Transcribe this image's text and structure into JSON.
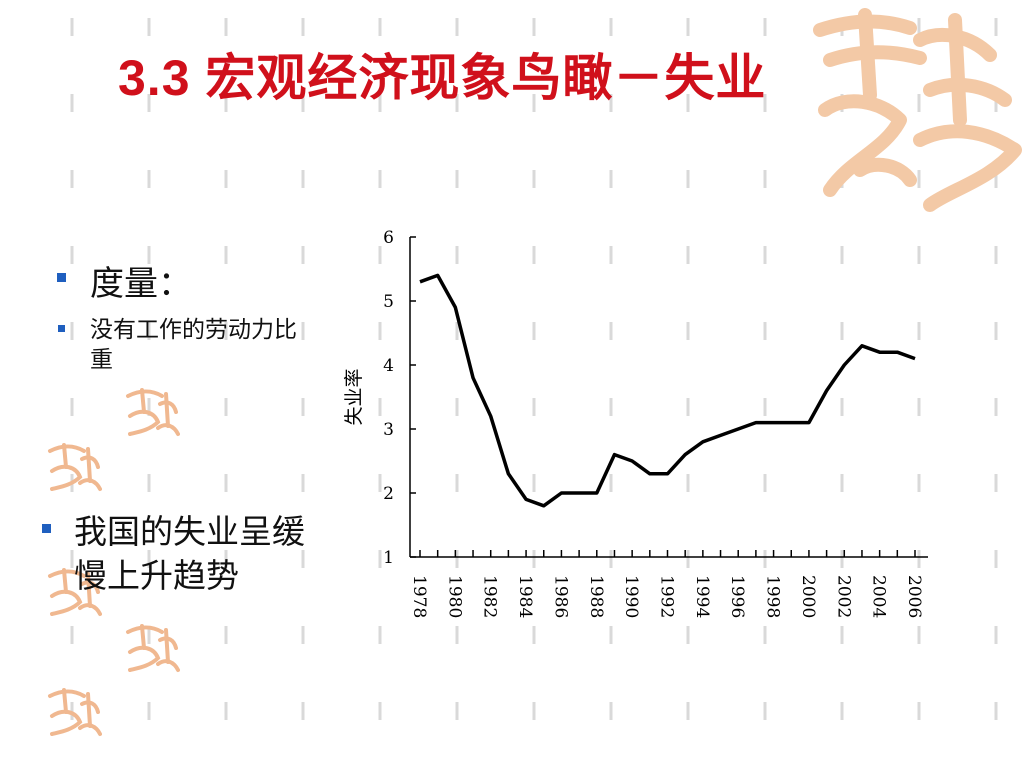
{
  "slide": {
    "title": "3.3 宏观经济现象鸟瞰－失业",
    "bullets": [
      {
        "text": "度量："
      },
      {
        "text": "没有工作的劳动力比重"
      },
      {
        "text": "我国的失业呈缓慢上升趋势"
      }
    ],
    "colors": {
      "title": "#d0101b",
      "bullet": "#1f5fbf",
      "line": "#000000",
      "watermark": "#f3c9a6"
    },
    "icons": [
      "dash-pattern-background",
      "seal-watermark-icon"
    ]
  },
  "chart_data": {
    "type": "line",
    "ylabel": "失业率",
    "xlabel": "",
    "ylim": [
      1,
      6
    ],
    "yticks": [
      1,
      2,
      3,
      4,
      5,
      6
    ],
    "xticks": [
      "1978",
      "1980",
      "1982",
      "1984",
      "1986",
      "1988",
      "1990",
      "1992",
      "1994",
      "1996",
      "1998",
      "2000",
      "2002",
      "2004",
      "2006"
    ],
    "x": [
      1978,
      1979,
      1980,
      1981,
      1982,
      1983,
      1984,
      1985,
      1986,
      1987,
      1988,
      1989,
      1990,
      1991,
      1992,
      1993,
      1994,
      1995,
      1996,
      1997,
      1998,
      1999,
      2000,
      2001,
      2002,
      2003,
      2004,
      2005,
      2006
    ],
    "series": [
      {
        "values": [
          5.3,
          5.4,
          4.9,
          3.8,
          3.2,
          2.3,
          1.9,
          1.8,
          2.0,
          2.0,
          2.0,
          2.6,
          2.5,
          2.3,
          2.3,
          2.6,
          2.8,
          2.9,
          3.0,
          3.1,
          3.1,
          3.1,
          3.1,
          3.6,
          4.0,
          4.3,
          4.2,
          4.2,
          4.1
        ]
      }
    ],
    "grid": false,
    "legend": "none"
  }
}
